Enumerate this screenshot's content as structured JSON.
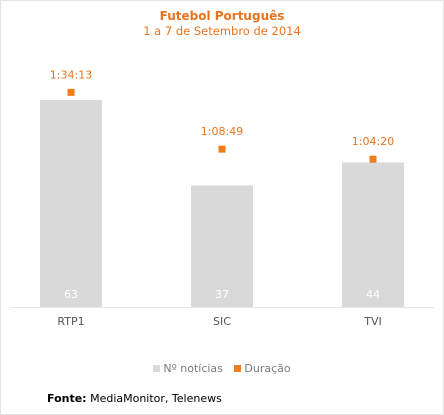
{
  "chart_data": {
    "type": "bar",
    "title": "Futebol Português",
    "subtitle": "1 a 7 de Setembro de 2014",
    "categories": [
      "RTP1",
      "SIC",
      "TVI"
    ],
    "series": [
      {
        "name": "Nº notícias",
        "values": [
          63,
          37,
          44
        ],
        "color": "#d9d9d9"
      },
      {
        "name": "Duração",
        "values": [
          "1:34:13",
          "1:08:49",
          "1:04:20"
        ],
        "seconds": [
          5653,
          4129,
          3860
        ],
        "color": "#f07c1a"
      }
    ],
    "legend_position": "bottom"
  },
  "footer": {
    "source_label": "Fonte:",
    "source_text": "MediaMonitor, Telenews"
  }
}
